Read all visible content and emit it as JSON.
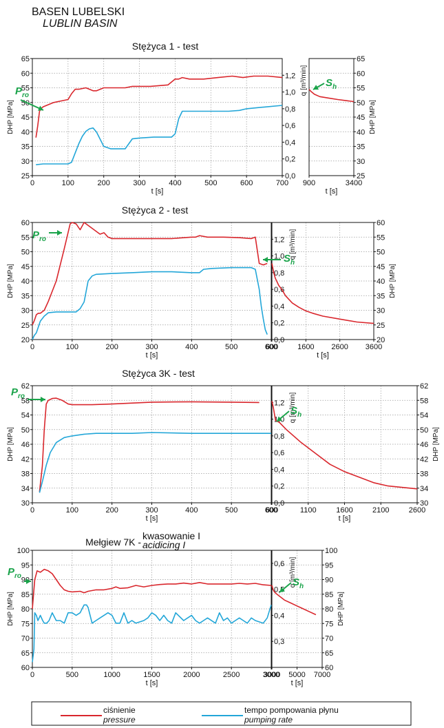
{
  "header": {
    "title": "BASEN LUBELSKI",
    "subtitle": "LUBLIN BASIN"
  },
  "colors": {
    "pressure": "#d9262c",
    "rate": "#22a6d8",
    "annotation": "#1aa34a",
    "grid": "#9a9a9a"
  },
  "legend": {
    "pressure": {
      "label": "ciśnienie",
      "sublabel": "pressure"
    },
    "rate": {
      "label": "tempo pompowania płynu",
      "sublabel": "pumping rate"
    }
  },
  "annotations": {
    "p": "P",
    "p_sub": "ro",
    "s": "S",
    "s_sub": "h"
  },
  "chart_data": [
    {
      "type": "line",
      "title": "Stężyca 1 - test",
      "title_suffix": "",
      "title_suffix_italic": "",
      "xlabel": "t [s]",
      "ylabel": "DHP [MPa]",
      "y2label": "q [m³/min]",
      "xlim": [
        0,
        700
      ],
      "xticks": [
        0,
        100,
        200,
        300,
        400,
        500,
        600,
        700
      ],
      "ylim": [
        25,
        65
      ],
      "yticks": [
        25,
        30,
        35,
        40,
        45,
        50,
        55,
        60,
        65
      ],
      "y2lim": [
        0,
        1.4
      ],
      "y2ticks": [
        0,
        0.2,
        0.4,
        0.6,
        0.8,
        1.0,
        1.2
      ],
      "y2ticklabels": [
        "0,0",
        "0,2",
        "0,4",
        "0,6",
        "0,8",
        "1,0",
        "1,2"
      ],
      "grid": true,
      "series": [
        {
          "name": "ciśnienie",
          "axis": "left",
          "x": [
            10,
            15,
            20,
            25,
            30,
            40,
            60,
            80,
            100,
            110,
            120,
            130,
            150,
            170,
            180,
            200,
            230,
            260,
            280,
            300,
            330,
            380,
            400,
            410,
            420,
            440,
            480,
            520,
            560,
            590,
            620,
            660,
            700
          ],
          "y": [
            38,
            42,
            47,
            48,
            48.5,
            49,
            50,
            50.5,
            51,
            53,
            54.5,
            54.5,
            55,
            54,
            54,
            55,
            55,
            55,
            55.5,
            55.5,
            55.5,
            56,
            58,
            58,
            58.5,
            58,
            58,
            58.5,
            59,
            58.5,
            59,
            59,
            58.5
          ]
        },
        {
          "name": "tempo pompowania płynu",
          "axis": "right",
          "x": [
            10,
            30,
            60,
            100,
            110,
            120,
            130,
            140,
            150,
            160,
            170,
            180,
            200,
            220,
            260,
            280,
            300,
            340,
            390,
            400,
            410,
            420,
            440,
            500,
            550,
            580,
            600,
            650,
            700
          ],
          "y": [
            0.13,
            0.14,
            0.14,
            0.14,
            0.16,
            0.27,
            0.38,
            0.47,
            0.53,
            0.56,
            0.57,
            0.52,
            0.35,
            0.32,
            0.32,
            0.44,
            0.45,
            0.46,
            0.46,
            0.5,
            0.68,
            0.77,
            0.77,
            0.77,
            0.77,
            0.78,
            0.8,
            0.82,
            0.84
          ]
        }
      ],
      "shutin": {
        "title": "",
        "xlim": [
          900,
          3400
        ],
        "xticks": [
          900,
          3400
        ],
        "xlabel": "t [s]",
        "ylabel": "DHP [MPa]",
        "series": [
          {
            "name": "ciśnienie",
            "x": [
              900,
              1000,
              1200,
              1500,
              2000,
              2500,
              3000,
              3400
            ],
            "y": [
              54.5,
              53.8,
              52.8,
              52,
              51.5,
              51,
              50.6,
              50.3
            ]
          }
        ]
      }
    },
    {
      "type": "line",
      "title": "Stężyca 2 - test",
      "title_suffix": "",
      "title_suffix_italic": "",
      "xlabel": "t [s]",
      "ylabel": "DHP [MPa]",
      "y2label": "q [m³/min]",
      "xlim": [
        0,
        600
      ],
      "xticks": [
        0,
        100,
        200,
        300,
        400,
        500,
        600
      ],
      "ylim": [
        20,
        60
      ],
      "yticks": [
        20,
        25,
        30,
        35,
        40,
        45,
        50,
        55,
        60
      ],
      "y2lim": [
        0,
        1.4
      ],
      "y2ticks": [
        0,
        0.2,
        0.4,
        0.6,
        0.8,
        1.0,
        1.2
      ],
      "y2ticklabels": [
        "0,0",
        "0,2",
        "0,4",
        "0,6",
        "0,8",
        "1,0",
        "1,2"
      ],
      "grid": true,
      "series": [
        {
          "name": "ciśnienie",
          "axis": "left",
          "x": [
            0,
            5,
            10,
            15,
            20,
            30,
            40,
            60,
            80,
            95,
            100,
            110,
            120,
            130,
            150,
            170,
            180,
            190,
            200,
            250,
            300,
            350,
            400,
            410,
            420,
            440,
            480,
            520,
            550,
            560,
            570,
            580,
            590
          ],
          "y": [
            25,
            26.5,
            28.5,
            29,
            29,
            30,
            33,
            40,
            51,
            59.5,
            60,
            59.5,
            57.5,
            60,
            58,
            56,
            56.5,
            55,
            54.5,
            54.5,
            54.5,
            54.5,
            55,
            55,
            55.5,
            55,
            55,
            54.8,
            54.5,
            55,
            46,
            45.5,
            46
          ]
        },
        {
          "name": "tempo pompowania płynu",
          "axis": "right",
          "x": [
            0,
            5,
            10,
            20,
            30,
            35,
            40,
            60,
            80,
            100,
            110,
            120,
            130,
            140,
            150,
            160,
            200,
            250,
            300,
            350,
            400,
            410,
            420,
            430,
            450,
            500,
            550,
            560,
            570,
            575,
            580,
            585,
            590
          ],
          "y": [
            0,
            0.05,
            0.08,
            0.22,
            0.28,
            0.3,
            0.32,
            0.33,
            0.33,
            0.33,
            0.33,
            0.37,
            0.45,
            0.7,
            0.76,
            0.78,
            0.79,
            0.8,
            0.81,
            0.81,
            0.8,
            0.8,
            0.8,
            0.84,
            0.85,
            0.86,
            0.86,
            0.84,
            0.6,
            0.4,
            0.25,
            0.12,
            0.06
          ]
        }
      ],
      "shutin": {
        "title": "",
        "xlim": [
          600,
          3600
        ],
        "xticks": [
          600,
          1600,
          2600,
          3600
        ],
        "xlabel": "t [s]",
        "ylabel": "DHP [MPa]",
        "series": [
          {
            "name": "ciśnienie",
            "x": [
              600,
              650,
              700,
              800,
              900,
              1000,
              1200,
              1400,
              1600,
              1800,
              2100,
              2600,
              3100,
              3600
            ],
            "y": [
              46,
              43,
              41,
              38.5,
              37,
              35,
              32.5,
              31,
              29.8,
              29,
              28,
              27,
              26,
              25.5
            ]
          }
        ]
      }
    },
    {
      "type": "line",
      "title": "Stężyca 3K - test",
      "title_suffix": "",
      "title_suffix_italic": "",
      "xlabel": "t [s]",
      "ylabel": "DHP [MPa]",
      "y2label": "q [m³/min]",
      "xlim": [
        0,
        600
      ],
      "xticks": [
        0,
        100,
        200,
        300,
        400,
        500,
        600
      ],
      "ylim": [
        30,
        62
      ],
      "yticks": [
        30,
        34,
        38,
        42,
        46,
        50,
        54,
        58,
        62
      ],
      "y2lim": [
        0,
        1.4
      ],
      "y2ticks": [
        0,
        0.2,
        0.4,
        0.6,
        0.8,
        1.0,
        1.2
      ],
      "y2ticklabels": [
        "0,0",
        "0,2",
        "0,4",
        "0,6",
        "0,8",
        "1,0",
        "1,2"
      ],
      "grid": true,
      "series": [
        {
          "name": "ciśnienie",
          "axis": "left",
          "x": [
            18,
            25,
            30,
            35,
            40,
            50,
            60,
            75,
            90,
            100,
            150,
            200,
            300,
            400,
            500,
            570
          ],
          "y": [
            33,
            40,
            50,
            57,
            58,
            58.5,
            58.6,
            58,
            57,
            56.8,
            56.8,
            57,
            57.5,
            57.6,
            57.5,
            57.4
          ]
        },
        {
          "name": "tempo pompowania płynu",
          "axis": "right",
          "x": [
            18,
            25,
            35,
            45,
            60,
            80,
            100,
            130,
            160,
            200,
            250,
            300,
            400,
            500,
            600
          ],
          "y": [
            0.12,
            0.25,
            0.45,
            0.6,
            0.72,
            0.78,
            0.8,
            0.82,
            0.83,
            0.83,
            0.83,
            0.84,
            0.83,
            0.83,
            0.83
          ]
        }
      ],
      "shutin": {
        "title": "",
        "xlim": [
          600,
          2600
        ],
        "xticks": [
          600,
          1100,
          1600,
          2100,
          2600
        ],
        "xlabel": "t [s]",
        "ylabel": "DHP [MPa]",
        "series": [
          {
            "name": "ciśnienie",
            "x": [
              600,
              620,
              650,
              700,
              800,
              1000,
              1200,
              1400,
              1600,
              1800,
              2000,
              2200,
              2400,
              2600
            ],
            "y": [
              57.8,
              56,
              52.5,
              52,
              50,
              46.5,
              43.5,
              40.5,
              38.5,
              37,
              35.5,
              34.6,
              34.2,
              33.8
            ]
          }
        ]
      }
    },
    {
      "type": "line",
      "title": "Mełgiew 7K - ",
      "title_suffix": "kwasowanie I",
      "title_suffix_italic": "acidicing I",
      "xlabel": "t [s]",
      "ylabel": "DHP [MPa]",
      "y2label": "q [m³/min]",
      "xlim": [
        0,
        3000
      ],
      "xticks": [
        0,
        500,
        1000,
        1500,
        2000,
        2500,
        3000
      ],
      "ylim": [
        60,
        100
      ],
      "yticks": [
        60,
        65,
        70,
        75,
        80,
        85,
        90,
        95,
        100
      ],
      "y2lim": [
        0.2,
        0.65
      ],
      "y2ticks": [
        0.3,
        0.4,
        0.5,
        0.6
      ],
      "y2ticklabels": [
        "0,3",
        "0,4",
        "0,5",
        "0,6"
      ],
      "grid": true,
      "series": [
        {
          "name": "ciśnienie",
          "axis": "left",
          "x": [
            0,
            30,
            60,
            100,
            150,
            200,
            250,
            300,
            350,
            400,
            450,
            500,
            600,
            650,
            700,
            800,
            900,
            1000,
            1050,
            1100,
            1200,
            1300,
            1400,
            1500,
            1600,
            1700,
            1800,
            1900,
            2000,
            2100,
            2200,
            2300,
            2400,
            2500,
            2600,
            2700,
            2800,
            2900,
            3000
          ],
          "y": [
            80,
            90,
            93,
            92.5,
            93.5,
            93,
            92,
            90,
            88,
            86.5,
            86,
            85.8,
            86,
            85.5,
            86,
            86.5,
            86.5,
            87,
            87.5,
            87,
            87.2,
            88,
            87.5,
            88,
            88.3,
            88.5,
            88.5,
            88.8,
            88.5,
            89,
            88.5,
            88.5,
            88.5,
            88.5,
            88.7,
            88.5,
            88.7,
            88.2,
            88
          ]
        },
        {
          "name": "tempo pompowania płynu",
          "axis": "right",
          "x": [
            0,
            20,
            30,
            50,
            70,
            100,
            130,
            150,
            180,
            210,
            250,
            300,
            350,
            400,
            450,
            500,
            550,
            600,
            650,
            680,
            700,
            750,
            800,
            850,
            900,
            950,
            1000,
            1050,
            1100,
            1150,
            1200,
            1250,
            1300,
            1400,
            1450,
            1500,
            1550,
            1600,
            1650,
            1700,
            1750,
            1800,
            1900,
            1950,
            2000,
            2050,
            2100,
            2150,
            2200,
            2300,
            2350,
            2400,
            2450,
            2500,
            2550,
            2600,
            2650,
            2700,
            2750,
            2800,
            2900,
            2950,
            3000
          ],
          "y": [
            0.22,
            0.27,
            0.41,
            0.4,
            0.38,
            0.4,
            0.38,
            0.37,
            0.37,
            0.38,
            0.41,
            0.38,
            0.38,
            0.37,
            0.41,
            0.41,
            0.4,
            0.41,
            0.44,
            0.44,
            0.43,
            0.37,
            0.38,
            0.39,
            0.4,
            0.41,
            0.4,
            0.37,
            0.37,
            0.41,
            0.37,
            0.38,
            0.37,
            0.38,
            0.39,
            0.41,
            0.4,
            0.38,
            0.4,
            0.38,
            0.37,
            0.41,
            0.38,
            0.39,
            0.4,
            0.38,
            0.37,
            0.38,
            0.39,
            0.37,
            0.41,
            0.38,
            0.39,
            0.37,
            0.38,
            0.39,
            0.38,
            0.37,
            0.39,
            0.38,
            0.37,
            0.39,
            0.44
          ]
        }
      ],
      "shutin": {
        "title": "",
        "xlim": [
          3000,
          7000
        ],
        "xticks": [
          3000,
          5000,
          7000
        ],
        "xlabel": "t [s]",
        "ylabel": "DHP [MPa]",
        "series": [
          {
            "name": "ciśnienie",
            "x": [
              3000,
              3100,
              3200,
              3400,
              3700,
              4000,
              4500,
              5000,
              5500,
              6000,
              6500
            ],
            "y": [
              88,
              86.5,
              85.8,
              85,
              84,
              83,
              82,
              81,
              80,
              79,
              78
            ]
          }
        ]
      }
    }
  ]
}
